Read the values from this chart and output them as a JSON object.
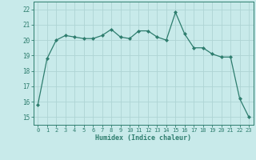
{
  "x": [
    0,
    1,
    2,
    3,
    4,
    5,
    6,
    7,
    8,
    9,
    10,
    11,
    12,
    13,
    14,
    15,
    16,
    17,
    18,
    19,
    20,
    21,
    22,
    23
  ],
  "y": [
    15.8,
    18.8,
    20.0,
    20.3,
    20.2,
    20.1,
    20.1,
    20.3,
    20.7,
    20.2,
    20.1,
    20.6,
    20.6,
    20.2,
    20.0,
    21.8,
    20.4,
    19.5,
    19.5,
    19.1,
    18.9,
    18.9,
    16.2,
    15.0
  ],
  "line_color": "#2e7d6e",
  "marker": "D",
  "marker_size": 2.0,
  "bg_color": "#c8eaea",
  "grid_color": "#aed4d4",
  "xlabel": "Humidex (Indice chaleur)",
  "xlabel_color": "#2e7d6e",
  "tick_color": "#2e7d6e",
  "ylim": [
    14.5,
    22.5
  ],
  "xlim": [
    -0.5,
    23.5
  ],
  "yticks": [
    15,
    16,
    17,
    18,
    19,
    20,
    21,
    22
  ],
  "xticks": [
    0,
    1,
    2,
    3,
    4,
    5,
    6,
    7,
    8,
    9,
    10,
    11,
    12,
    13,
    14,
    15,
    16,
    17,
    18,
    19,
    20,
    21,
    22,
    23
  ],
  "xtick_labels": [
    "0",
    "1",
    "2",
    "3",
    "4",
    "5",
    "6",
    "7",
    "8",
    "9",
    "10",
    "11",
    "12",
    "13",
    "14",
    "15",
    "16",
    "17",
    "18",
    "19",
    "20",
    "21",
    "22",
    "23"
  ]
}
